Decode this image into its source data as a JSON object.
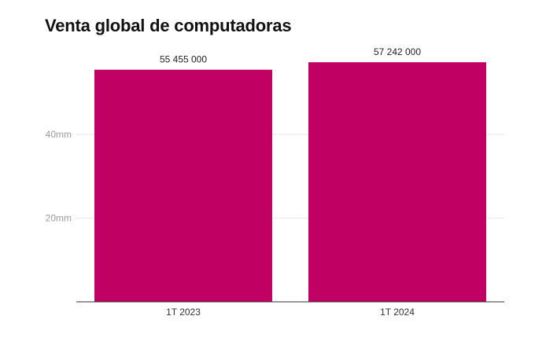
{
  "chart_data": {
    "type": "bar",
    "title": "Venta global de computadoras",
    "categories": [
      "1T 2023",
      "1T 2024"
    ],
    "values": [
      55455000,
      57242000
    ],
    "value_labels": [
      "55 455 000",
      "57 242 000"
    ],
    "xlabel": "",
    "ylabel": "",
    "ylim": [
      0,
      60000000
    ],
    "y_ticks": [
      {
        "value": 20000000,
        "label": "20mm"
      },
      {
        "value": 40000000,
        "label": "40mm"
      }
    ],
    "grid": true,
    "legend": "none",
    "colors": {
      "bar": "#c00063",
      "grid": "#e6e6e6",
      "axis": "#333333",
      "tick_label": "#9a9a9a",
      "category_label": "#333333",
      "value_label": "#222222"
    }
  }
}
